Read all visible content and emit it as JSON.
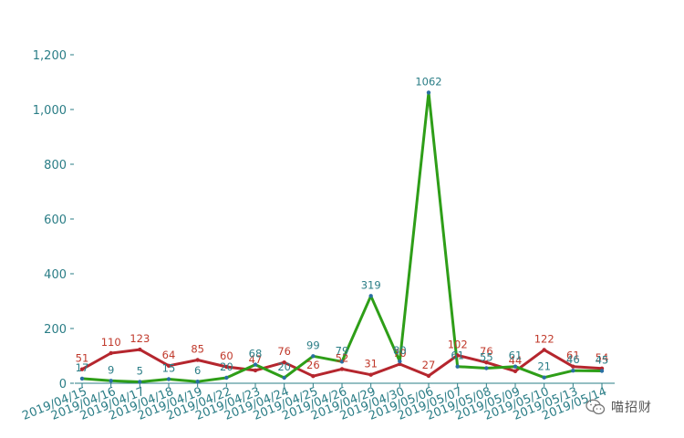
{
  "chart_data": {
    "type": "line",
    "categories": [
      "2019/04/15",
      "2019/04/16",
      "2019/04/17",
      "2019/04/18",
      "2019/04/19",
      "2019/04/22",
      "2019/04/23",
      "2019/04/24",
      "2019/04/25",
      "2019/04/26",
      "2019/04/29",
      "2019/04/30",
      "2019/05/06",
      "2019/05/07",
      "2019/05/08",
      "2019/05/09",
      "2019/05/10",
      "2019/05/13",
      "2019/05/14"
    ],
    "series": [
      {
        "color": "#b5262e",
        "label_color": "#c0392b",
        "values": [
          51,
          110,
          123,
          64,
          85,
          60,
          47,
          76,
          26,
          52,
          31,
          70,
          27,
          102,
          76,
          44,
          122,
          61,
          54
        ]
      },
      {
        "color": "#2e9e18",
        "label_color": "#2a7d86",
        "values": [
          17,
          9,
          5,
          15,
          6,
          20,
          68,
          20,
          99,
          79,
          319,
          80,
          1062,
          61,
          55,
          61,
          21,
          46,
          45
        ]
      }
    ],
    "ylim": [
      0,
      1200
    ],
    "yticks": [
      0,
      200,
      400,
      600,
      800,
      1000,
      1200
    ],
    "ytick_labels": [
      "0",
      "200",
      "400",
      "600",
      "800",
      "1,000",
      "1,200"
    ],
    "axis_color": "#2a7d86",
    "title": "",
    "xlabel": "",
    "ylabel": ""
  },
  "watermark": {
    "text": "喵招财",
    "icon": "wechat-logo-icon"
  }
}
